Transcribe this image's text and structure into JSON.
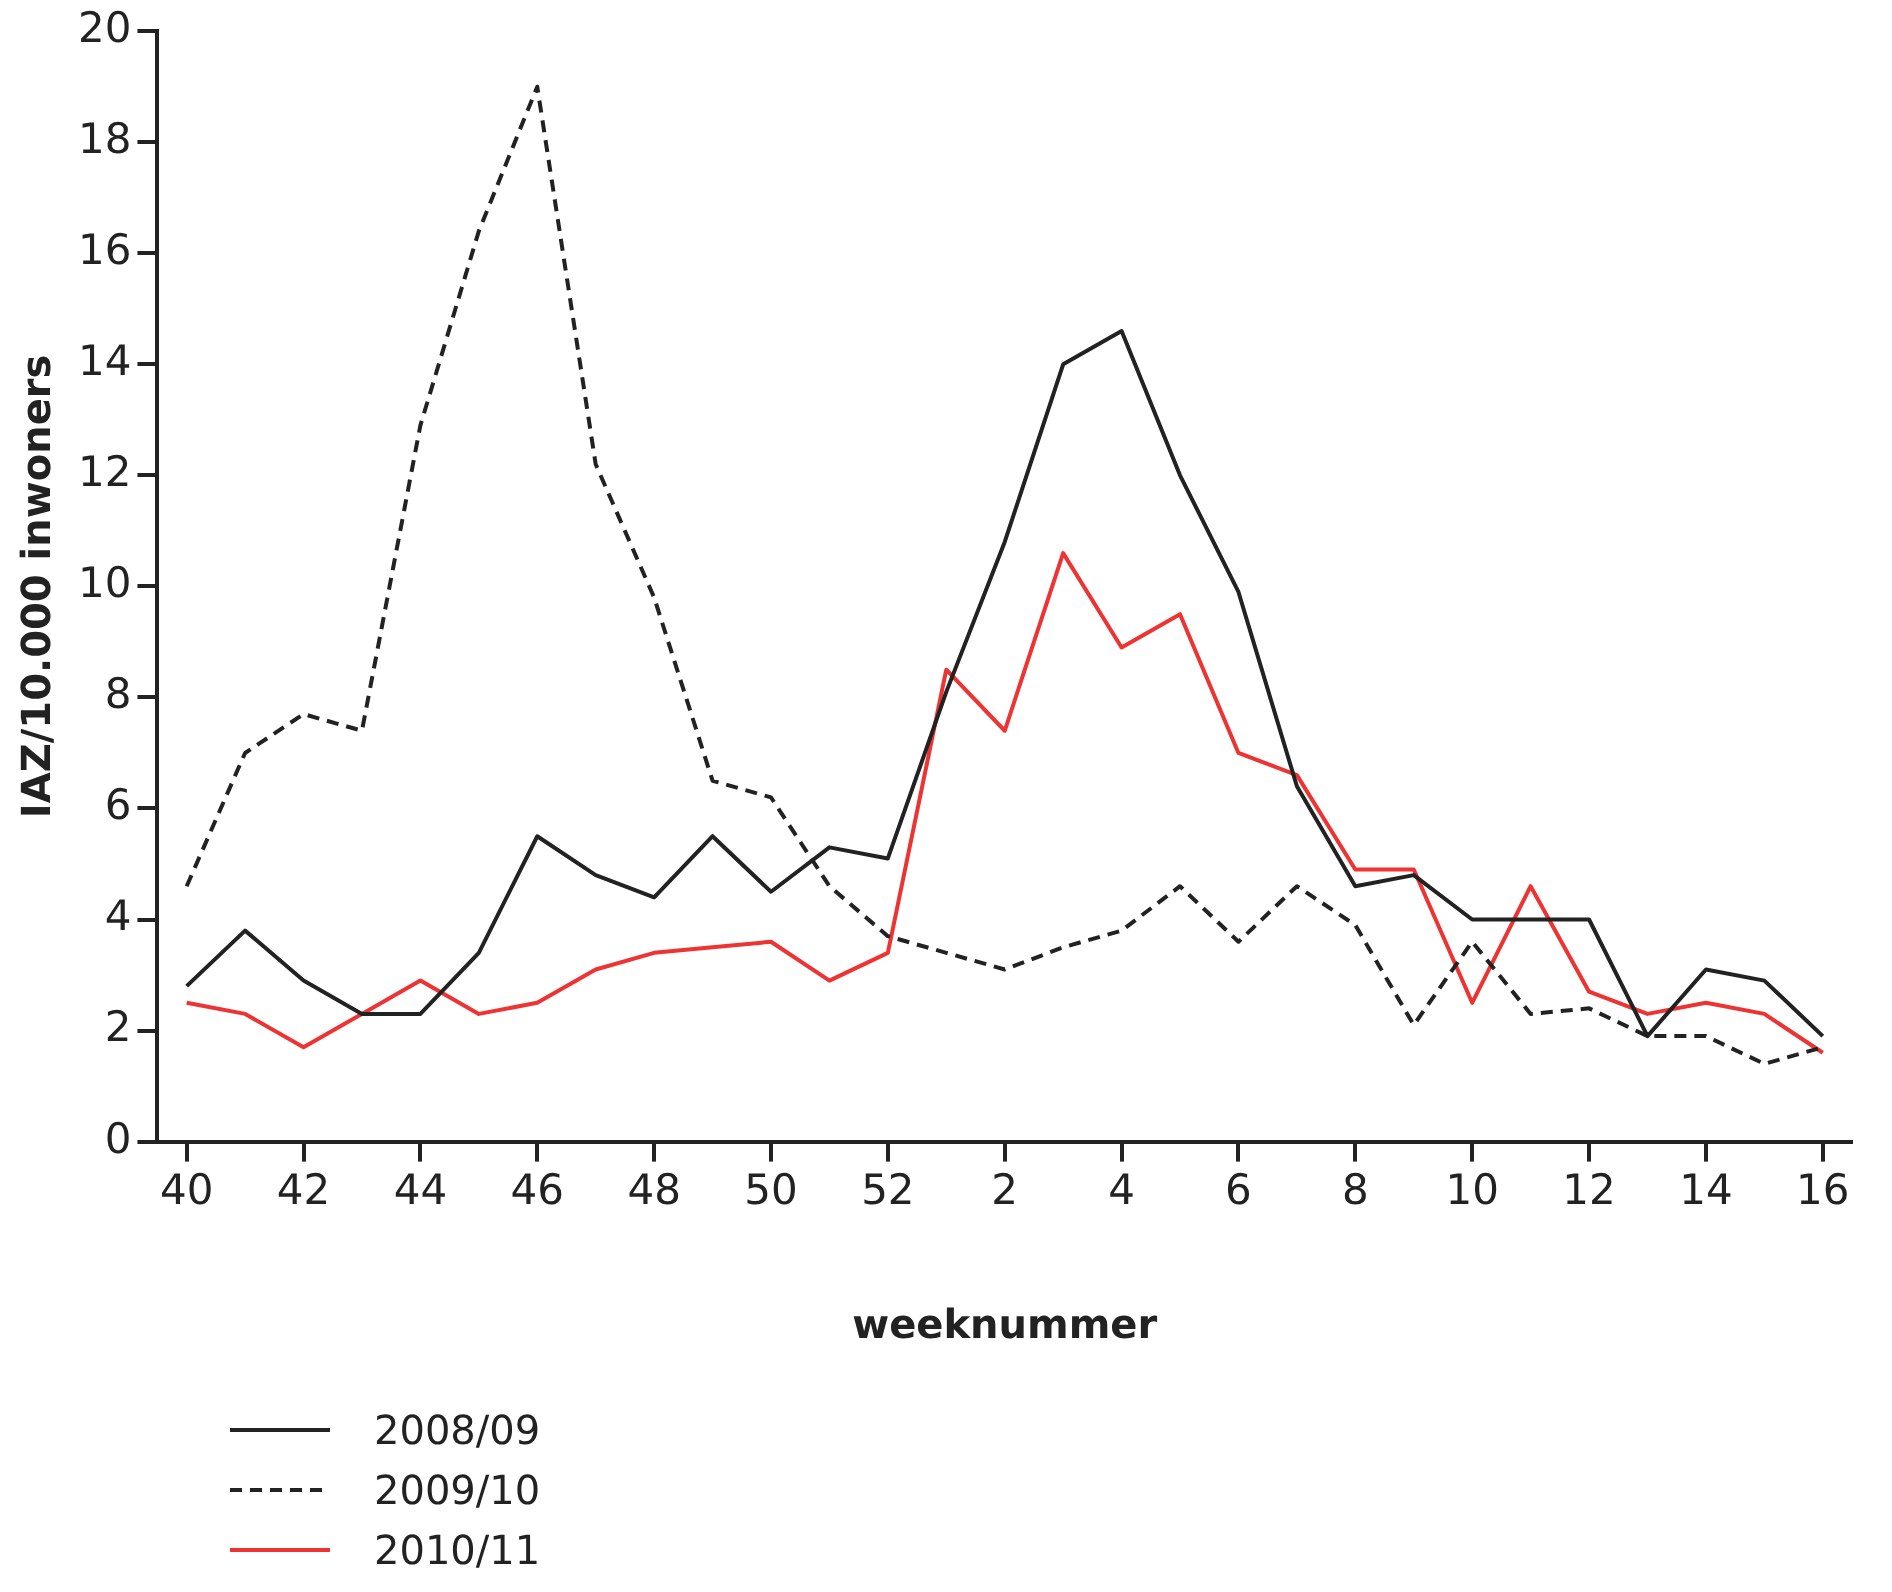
{
  "chart_data": {
    "type": "line",
    "xlabel": "weeknummer",
    "ylabel": "IAZ/10.000 inwoners",
    "categories": [
      "40",
      null,
      "42",
      null,
      "44",
      null,
      "46",
      null,
      "48",
      null,
      "50",
      null,
      "52",
      null,
      "2",
      null,
      "4",
      null,
      "6",
      null,
      "8",
      null,
      "10",
      null,
      "12",
      null,
      "14",
      null,
      "16"
    ],
    "ylim": [
      0,
      20
    ],
    "yticks": [
      0,
      2,
      4,
      6,
      8,
      10,
      12,
      14,
      16,
      18,
      20
    ],
    "legend": "bottom left",
    "series": [
      {
        "name": "2008/09",
        "color": "#222222",
        "line_style": "solid",
        "values": [
          2.8,
          3.8,
          2.9,
          2.3,
          2.3,
          3.4,
          5.5,
          4.8,
          4.4,
          5.5,
          4.5,
          5.3,
          5.1,
          8.1,
          10.8,
          14.0,
          14.6,
          12.0,
          9.9,
          6.4,
          4.6,
          4.8,
          4.0,
          4.0,
          4.0,
          1.9,
          3.1,
          2.9,
          1.9
        ]
      },
      {
        "name": "2009/10",
        "color": "#222222",
        "line_style": "dashed",
        "values": [
          4.6,
          7.0,
          7.7,
          7.4,
          12.9,
          16.4,
          19.0,
          12.2,
          9.8,
          6.5,
          6.2,
          4.6,
          3.7,
          3.4,
          3.1,
          3.5,
          3.8,
          4.6,
          3.6,
          4.6,
          3.9,
          2.1,
          3.6,
          2.3,
          2.4,
          1.9,
          1.9,
          1.4,
          1.7
        ]
      },
      {
        "name": "2010/11",
        "color": "#ee3333",
        "line_style": "solid",
        "values": [
          2.5,
          2.3,
          1.7,
          2.3,
          2.9,
          2.3,
          2.5,
          3.1,
          3.4,
          3.5,
          3.6,
          2.9,
          3.4,
          8.5,
          7.4,
          10.6,
          8.9,
          9.5,
          7.0,
          6.6,
          4.9,
          4.9,
          2.5,
          4.6,
          2.7,
          2.3,
          2.5,
          2.3,
          1.6
        ]
      }
    ]
  }
}
